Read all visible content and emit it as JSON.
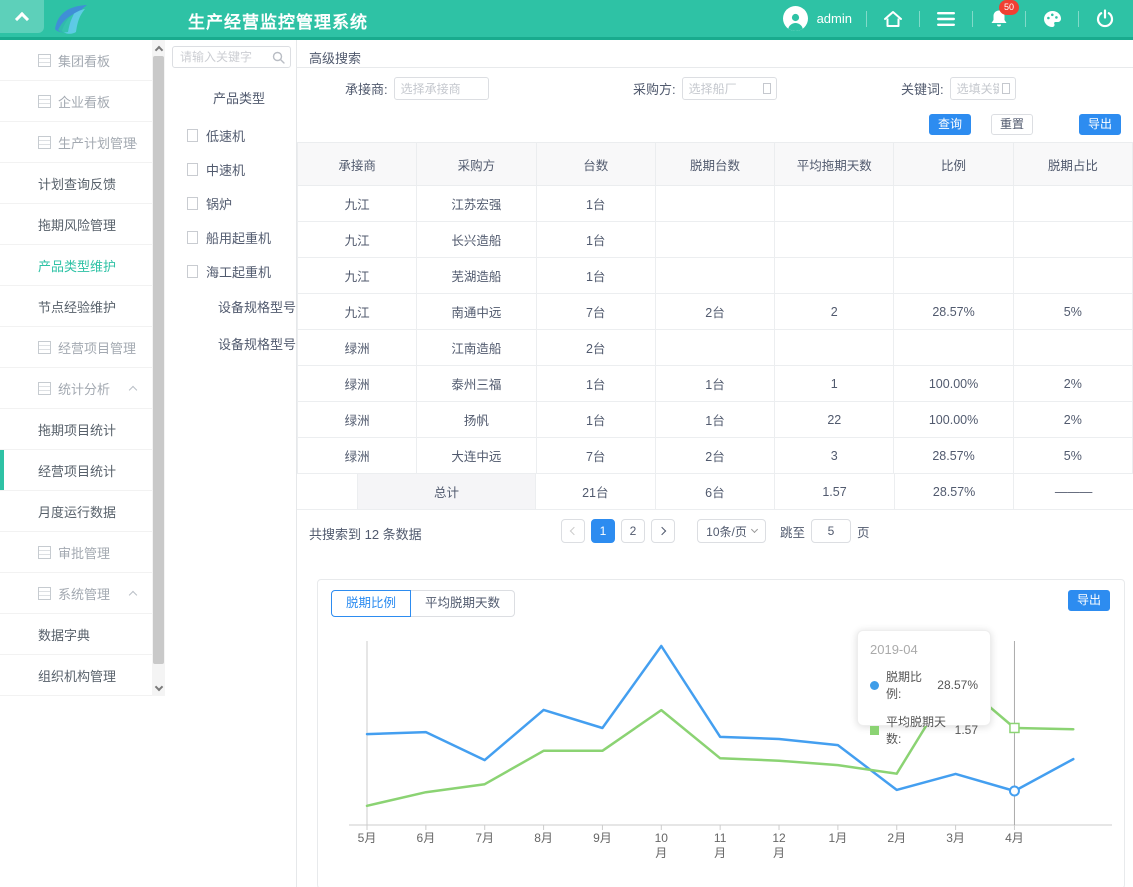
{
  "header": {
    "title": "生产经营监控管理系统",
    "user": "admin",
    "badge_count": "50",
    "accent_color": "#2ec2a5"
  },
  "sidebar": {
    "items": [
      {
        "label": "集团看板",
        "type": "parent"
      },
      {
        "label": "企业看板",
        "type": "parent"
      },
      {
        "label": "生产计划管理",
        "type": "parent",
        "expanded": true
      },
      {
        "label": "计划查询反馈",
        "type": "child"
      },
      {
        "label": "拖期风险管理",
        "type": "child"
      },
      {
        "label": "产品类型维护",
        "type": "child",
        "green": true
      },
      {
        "label": "节点经验维护",
        "type": "child"
      },
      {
        "label": "经营项目管理",
        "type": "parent"
      },
      {
        "label": "统计分析",
        "type": "parent",
        "expanded": true
      },
      {
        "label": "拖期项目统计",
        "type": "child"
      },
      {
        "label": "经营项目统计",
        "type": "child",
        "current": true
      },
      {
        "label": "月度运行数据",
        "type": "child"
      },
      {
        "label": "审批管理",
        "type": "parent"
      },
      {
        "label": "系统管理",
        "type": "parent",
        "expanded": true
      },
      {
        "label": "数据字典",
        "type": "child"
      },
      {
        "label": "组织机构管理",
        "type": "child"
      }
    ]
  },
  "tree": {
    "search_placeholder": "请输入关键字",
    "root": "产品类型",
    "items": [
      "低速机",
      "中速机",
      "锅炉",
      "船用起重机",
      "海工起重机"
    ],
    "subitems": [
      "设备规格型号",
      "设备规格型号"
    ]
  },
  "search": {
    "panel_title": "高级搜索",
    "fields": [
      {
        "label": "承接商:",
        "placeholder": "选择承接商"
      },
      {
        "label": "采购方:",
        "placeholder": "选择船厂"
      },
      {
        "label": "关键词:",
        "placeholder": "选填关键词"
      }
    ],
    "query_label": "查询",
    "reset_label": "重置",
    "export_label": "导出"
  },
  "table": {
    "columns": [
      "承接商",
      "采购方",
      "台数",
      "脱期台数",
      "平均拖期天数",
      "比例",
      "脱期占比"
    ],
    "rows": [
      [
        "九江",
        "江苏宏强",
        "1台",
        "",
        "",
        "",
        ""
      ],
      [
        "九江",
        "长兴造船",
        "1台",
        "",
        "",
        "",
        ""
      ],
      [
        "九江",
        "芜湖造船",
        "1台",
        "",
        "",
        "",
        ""
      ],
      [
        "九江",
        "南通中远",
        "7台",
        "2台",
        "2",
        "28.57%",
        "5%"
      ],
      [
        "绿洲",
        "江南造船",
        "2台",
        "",
        "",
        "",
        ""
      ],
      [
        "绿洲",
        "泰州三福",
        "1台",
        "1台",
        "1",
        "100.00%",
        "2%"
      ],
      [
        "绿洲",
        "扬帆",
        "1台",
        "1台",
        "22",
        "100.00%",
        "2%"
      ],
      [
        "绿洲",
        "大连中远",
        "7台",
        "2台",
        "3",
        "28.57%",
        "5%"
      ]
    ],
    "footer": {
      "label": "总计",
      "values": [
        "21台",
        "6台",
        "1.57",
        "28.57%",
        "———"
      ]
    }
  },
  "pagination": {
    "summary": "共搜索到 12 条数据",
    "pages": [
      "1",
      "2"
    ],
    "active_page": "1",
    "page_size": "10条/页",
    "jump_label": "跳至",
    "jump_value": "5",
    "jump_suffix": "页"
  },
  "chart": {
    "tabs": [
      "脱期比例",
      "平均脱期天数"
    ],
    "active_tab": "脱期比例",
    "export_label": "导出",
    "tooltip": {
      "title": "2019-04",
      "rows": [
        {
          "label": "脱期比例:",
          "value": "28.57%",
          "color": "#409ee9"
        },
        {
          "label": "平均脱期天数:",
          "value": "1.57",
          "color": "#8bd373"
        }
      ]
    }
  },
  "chart_data": {
    "type": "line",
    "categories": [
      "5月",
      "6月",
      "7月",
      "8月",
      "9月",
      "10月",
      "11月",
      "12月",
      "1月",
      "2月",
      "3月",
      "4月",
      ""
    ],
    "series": [
      {
        "name": "脱期比例",
        "color": "#449ff0",
        "unit": "%",
        "values": [
          56.6,
          57.6,
          43.8,
          68.5,
          59.6,
          100,
          55.2,
          54.2,
          51.2,
          29.1,
          37,
          28.57,
          44.3
        ]
      },
      {
        "name": "平均脱期天数",
        "color": "#8bd373",
        "values": [
          0.31,
          0.53,
          0.66,
          1.2,
          1.2,
          1.86,
          1.08,
          1.04,
          0.97,
          0.83,
          2.38,
          1.57,
          1.55
        ]
      }
    ],
    "title": "",
    "xlabel": "",
    "ylabel": "",
    "y_axis_labels_visible": false,
    "grid": false,
    "legend_position": "none",
    "highlighted_category": "4月",
    "highlight_values": {
      "脱期比例": "28.57%",
      "平均脱期天数": "1.57"
    }
  }
}
